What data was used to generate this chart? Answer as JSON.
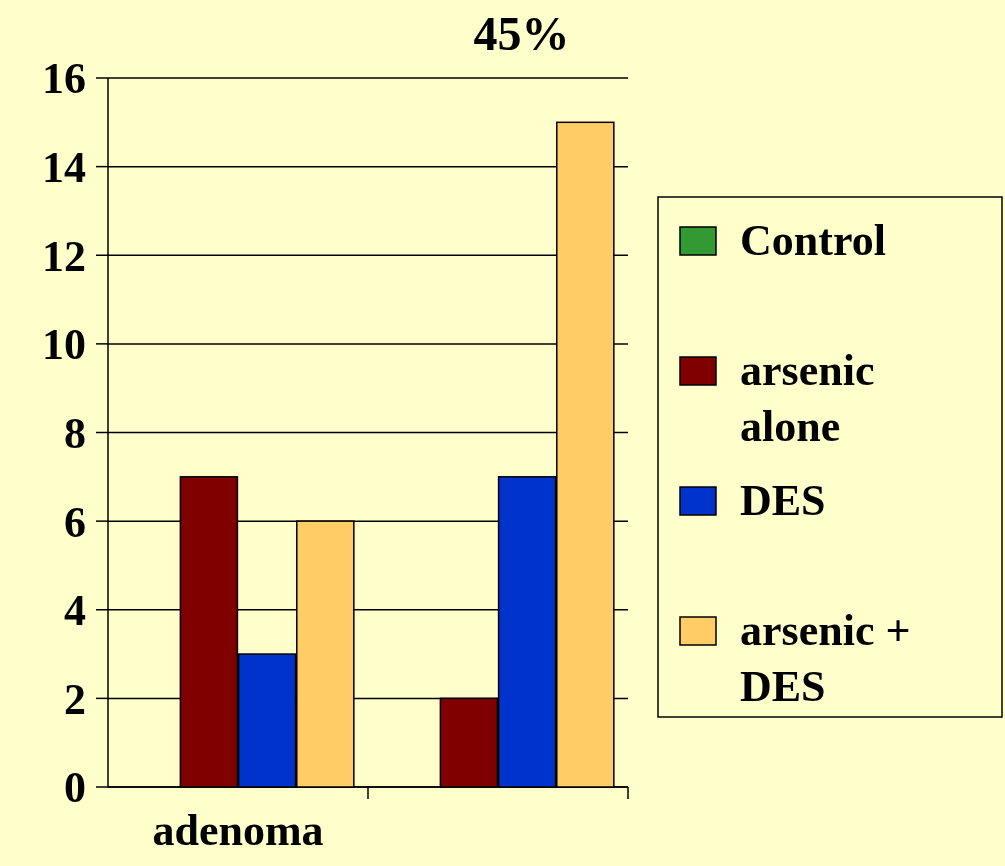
{
  "chart_data": {
    "type": "bar",
    "categories": [
      "adenoma",
      null
    ],
    "series": [
      {
        "name": "Control",
        "color": "#339933",
        "values": [
          0,
          0
        ]
      },
      {
        "name": "arsenic alone",
        "color": "#800000",
        "values": [
          7,
          2
        ]
      },
      {
        "name": "DES",
        "color": "#0033cc",
        "values": [
          3,
          7
        ]
      },
      {
        "name": "arsenic + DES",
        "color": "#ffcc66",
        "values": [
          6,
          15
        ]
      }
    ],
    "ylim": [
      0,
      16
    ],
    "yticks": [
      0,
      2,
      4,
      6,
      8,
      10,
      12,
      14,
      16
    ],
    "grid": "y",
    "legend": "right",
    "annotations": [
      "45%"
    ]
  }
}
